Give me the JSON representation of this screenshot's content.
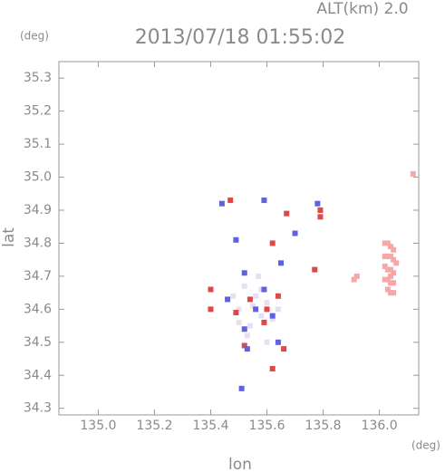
{
  "chart_data": {
    "type": "scatter",
    "title": "2013/07/18 01:55:02",
    "subtitle": "ALT(km) 2.0",
    "x_label": "lon",
    "y_label": "lat",
    "x_unit": "(deg)",
    "y_unit": "(deg)",
    "xlim": [
      134.86,
      136.14
    ],
    "ylim": [
      34.28,
      35.35
    ],
    "xticks": [
      {
        "value": 135,
        "label": "135.0"
      },
      135.2,
      135.4,
      135.6,
      135.8,
      {
        "value": 136,
        "label": "136.0"
      }
    ],
    "yticks": [
      34.3,
      34.4,
      34.5,
      34.6,
      34.7,
      34.8,
      34.9,
      {
        "value": 35,
        "label": "35.0"
      },
      35.1,
      35.2,
      35.3
    ],
    "series": [
      {
        "color": "#e8e0f0",
        "x": [
          135.52,
          135.56,
          135.6,
          135.5,
          135.58,
          135.54,
          135.62,
          135.48,
          135.57,
          135.53,
          135.6,
          135.55,
          135.5,
          135.64,
          135.58
        ],
        "y": [
          34.67,
          34.64,
          34.62,
          34.6,
          34.58,
          34.55,
          34.57,
          34.64,
          34.7,
          34.52,
          34.5,
          34.61,
          34.56,
          34.6,
          34.66
        ]
      },
      {
        "color": "#f4a8a8",
        "x": [
          136.02,
          136.03,
          136.04,
          136.05,
          136.02,
          136.03,
          136.04,
          136.05,
          136.06,
          136.02,
          136.03,
          136.04,
          136.05,
          136.02,
          136.03,
          136.04,
          136.03,
          136.04,
          136.05,
          135.92,
          135.91,
          136.12,
          136.04,
          136.05
        ],
        "y": [
          34.8,
          34.8,
          34.79,
          34.78,
          34.76,
          34.76,
          34.76,
          34.75,
          34.74,
          34.73,
          34.72,
          34.72,
          34.71,
          34.69,
          34.69,
          34.68,
          34.66,
          34.65,
          34.65,
          34.7,
          34.69,
          35.01,
          34.7,
          34.68
        ]
      },
      {
        "color": "#e04848",
        "x": [
          135.47,
          135.4,
          135.4,
          135.62,
          135.67,
          135.79,
          135.79,
          135.62,
          135.66,
          135.52,
          135.59,
          135.54,
          135.64,
          135.49,
          135.6,
          135.77
        ],
        "y": [
          34.93,
          34.66,
          34.6,
          34.8,
          34.89,
          34.9,
          34.88,
          34.42,
          34.48,
          34.49,
          34.56,
          34.63,
          34.64,
          34.59,
          34.6,
          34.72
        ]
      },
      {
        "color": "#6060e0",
        "x": [
          135.44,
          135.59,
          135.49,
          135.7,
          135.52,
          135.59,
          135.46,
          135.56,
          135.62,
          135.52,
          135.64,
          135.53,
          135.51,
          135.65,
          135.78
        ],
        "y": [
          34.92,
          34.93,
          34.81,
          34.83,
          34.71,
          34.66,
          34.63,
          34.6,
          34.58,
          34.54,
          34.5,
          34.48,
          34.36,
          34.74,
          34.92
        ]
      }
    ]
  }
}
